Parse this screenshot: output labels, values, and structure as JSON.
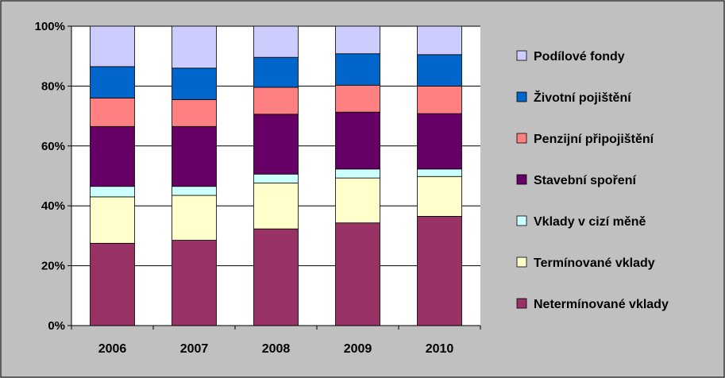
{
  "chart_data": {
    "type": "bar",
    "stacked": true,
    "normalized": true,
    "categories": [
      "2006",
      "2007",
      "2008",
      "2009",
      "2010"
    ],
    "series": [
      {
        "name": "Netermínované vklady",
        "color": "#993366",
        "values": [
          27.5,
          28.5,
          32.3,
          34.3,
          36.5
        ]
      },
      {
        "name": "Termínované vklady",
        "color": "#ffffcc",
        "values": [
          15.5,
          15.0,
          15.3,
          15.0,
          13.3
        ]
      },
      {
        "name": "Vklady v cizí měně",
        "color": "#ccffff",
        "values": [
          3.5,
          3.0,
          3.0,
          3.0,
          2.5
        ]
      },
      {
        "name": "Stavební spoření",
        "color": "#660066",
        "values": [
          20.0,
          20.0,
          20.0,
          19.0,
          18.5
        ]
      },
      {
        "name": "Penzijní připojištění",
        "color": "#ff8080",
        "values": [
          9.5,
          9.0,
          9.0,
          9.0,
          9.2
        ]
      },
      {
        "name": "Životní pojištění",
        "color": "#0066cc",
        "values": [
          10.5,
          10.5,
          10.0,
          10.5,
          10.5
        ]
      },
      {
        "name": "Podílové fondy",
        "color": "#ccccff",
        "values": [
          13.5,
          14.0,
          10.4,
          9.2,
          9.5
        ]
      }
    ],
    "yticks": [
      "0%",
      "20%",
      "40%",
      "60%",
      "80%",
      "100%"
    ],
    "ylim": [
      0,
      100
    ],
    "grid": true,
    "legend_position": "right",
    "title": "",
    "xlabel": "",
    "ylabel": ""
  }
}
